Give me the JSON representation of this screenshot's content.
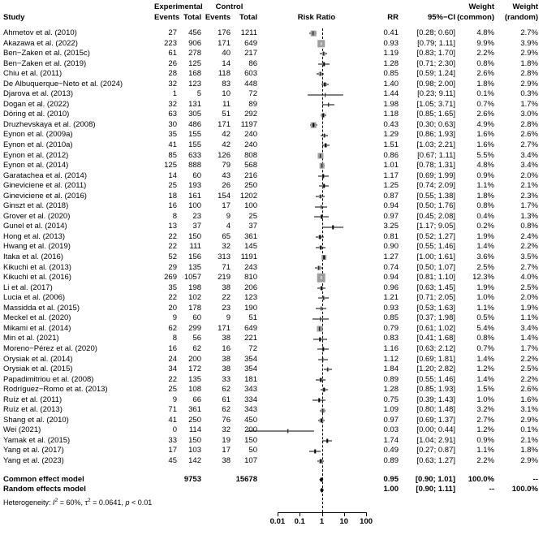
{
  "chart_data": {
    "type": "forest",
    "scale": "log10",
    "ref_line": 1,
    "colors": {
      "square_fill": "#9e9e9e",
      "line": "#000000",
      "background": "#ffffff"
    },
    "header": {
      "study": "Study",
      "experimental": "Experimental",
      "control": "Control",
      "events": "Events",
      "total": "Total",
      "risk_ratio": "Risk Ratio",
      "rr": "RR",
      "ci": "95%−CI",
      "weight": "Weight",
      "weight_common": "(common)",
      "weight_random": "(random)"
    },
    "axis": {
      "ticks": [
        0.01,
        0.1,
        1,
        10,
        100
      ]
    },
    "studies": [
      {
        "name": "Ahmetov et al. (2010)",
        "exp_events": 27,
        "exp_total": 456,
        "ctrl_events": 176,
        "ctrl_total": 1211,
        "rr": 0.41,
        "ci_lower": 0.28,
        "ci_upper": 0.6,
        "weight_common": "4.8%",
        "weight_random": "2.7%"
      },
      {
        "name": "Akazawa et al. (2022)",
        "exp_events": 223,
        "exp_total": 906,
        "ctrl_events": 171,
        "ctrl_total": 649,
        "rr": 0.93,
        "ci_lower": 0.79,
        "ci_upper": 1.11,
        "weight_common": "9.9%",
        "weight_random": "3.9%"
      },
      {
        "name": "Ben−Zaken et al. (2015c)",
        "exp_events": 61,
        "exp_total": 278,
        "ctrl_events": 40,
        "ctrl_total": 217,
        "rr": 1.19,
        "ci_lower": 0.83,
        "ci_upper": 1.7,
        "weight_common": "2.2%",
        "weight_random": "2.9%"
      },
      {
        "name": "Ben−Zaken et al. (2019)",
        "exp_events": 26,
        "exp_total": 125,
        "ctrl_events": 14,
        "ctrl_total": 86,
        "rr": 1.28,
        "ci_lower": 0.71,
        "ci_upper": 2.3,
        "weight_common": "0.8%",
        "weight_random": "1.8%"
      },
      {
        "name": "Chiu et al. (2011)",
        "exp_events": 28,
        "exp_total": 168,
        "ctrl_events": 118,
        "ctrl_total": 603,
        "rr": 0.85,
        "ci_lower": 0.59,
        "ci_upper": 1.24,
        "weight_common": "2.6%",
        "weight_random": "2.8%"
      },
      {
        "name": "De Albuquerque−Neto et al. (2024)",
        "exp_events": 32,
        "exp_total": 123,
        "ctrl_events": 83,
        "ctrl_total": 448,
        "rr": 1.4,
        "ci_lower": 0.98,
        "ci_upper": 2.0,
        "weight_common": "1.8%",
        "weight_random": "2.9%"
      },
      {
        "name": "Djarova et al. (2013)",
        "exp_events": 1,
        "exp_total": 5,
        "ctrl_events": 10,
        "ctrl_total": 72,
        "rr": 1.44,
        "ci_lower": 0.23,
        "ci_upper": 9.11,
        "weight_common": "0.1%",
        "weight_random": "0.3%"
      },
      {
        "name": "Dogan et al. (2022)",
        "exp_events": 32,
        "exp_total": 131,
        "ctrl_events": 11,
        "ctrl_total": 89,
        "rr": 1.98,
        "ci_lower": 1.05,
        "ci_upper": 3.71,
        "weight_common": "0.7%",
        "weight_random": "1.7%"
      },
      {
        "name": "Döring et al. (2010)",
        "exp_events": 63,
        "exp_total": 305,
        "ctrl_events": 51,
        "ctrl_total": 292,
        "rr": 1.18,
        "ci_lower": 0.85,
        "ci_upper": 1.65,
        "weight_common": "2.6%",
        "weight_random": "3.0%"
      },
      {
        "name": "Druzhevskaya et al. (2008)",
        "exp_events": 30,
        "exp_total": 486,
        "ctrl_events": 171,
        "ctrl_total": 1197,
        "rr": 0.43,
        "ci_lower": 0.3,
        "ci_upper": 0.63,
        "weight_common": "4.9%",
        "weight_random": "2.8%"
      },
      {
        "name": "Eynon et al. (2009a)",
        "exp_events": 35,
        "exp_total": 155,
        "ctrl_events": 42,
        "ctrl_total": 240,
        "rr": 1.29,
        "ci_lower": 0.86,
        "ci_upper": 1.93,
        "weight_common": "1.6%",
        "weight_random": "2.6%"
      },
      {
        "name": "Eynon et al. (2010a)",
        "exp_events": 41,
        "exp_total": 155,
        "ctrl_events": 42,
        "ctrl_total": 240,
        "rr": 1.51,
        "ci_lower": 1.03,
        "ci_upper": 2.21,
        "weight_common": "1.6%",
        "weight_random": "2.7%"
      },
      {
        "name": "Eynon et al. (2012)",
        "exp_events": 85,
        "exp_total": 633,
        "ctrl_events": 126,
        "ctrl_total": 808,
        "rr": 0.86,
        "ci_lower": 0.67,
        "ci_upper": 1.11,
        "weight_common": "5.5%",
        "weight_random": "3.4%"
      },
      {
        "name": "Eynon et al. (2014)",
        "exp_events": 125,
        "exp_total": 888,
        "ctrl_events": 79,
        "ctrl_total": 568,
        "rr": 1.01,
        "ci_lower": 0.78,
        "ci_upper": 1.31,
        "weight_common": "4.8%",
        "weight_random": "3.4%"
      },
      {
        "name": "Garatachea et al. (2014)",
        "exp_events": 14,
        "exp_total": 60,
        "ctrl_events": 43,
        "ctrl_total": 216,
        "rr": 1.17,
        "ci_lower": 0.69,
        "ci_upper": 1.99,
        "weight_common": "0.9%",
        "weight_random": "2.0%"
      },
      {
        "name": "Gineviciene et al. (2011)",
        "exp_events": 25,
        "exp_total": 193,
        "ctrl_events": 26,
        "ctrl_total": 250,
        "rr": 1.25,
        "ci_lower": 0.74,
        "ci_upper": 2.09,
        "weight_common": "1.1%",
        "weight_random": "2.1%"
      },
      {
        "name": "Gineviciene et al. (2016)",
        "exp_events": 18,
        "exp_total": 161,
        "ctrl_events": 154,
        "ctrl_total": 1202,
        "rr": 0.87,
        "ci_lower": 0.55,
        "ci_upper": 1.38,
        "weight_common": "1.8%",
        "weight_random": "2.3%"
      },
      {
        "name": "Ginszt et al. (2018)",
        "exp_events": 16,
        "exp_total": 100,
        "ctrl_events": 17,
        "ctrl_total": 100,
        "rr": 0.94,
        "ci_lower": 0.5,
        "ci_upper": 1.76,
        "weight_common": "0.8%",
        "weight_random": "1.7%"
      },
      {
        "name": "Grover et al. (2020)",
        "exp_events": 8,
        "exp_total": 23,
        "ctrl_events": 9,
        "ctrl_total": 25,
        "rr": 0.97,
        "ci_lower": 0.45,
        "ci_upper": 2.08,
        "weight_common": "0.4%",
        "weight_random": "1.3%"
      },
      {
        "name": "Gunel et al. (2014)",
        "exp_events": 13,
        "exp_total": 37,
        "ctrl_events": 4,
        "ctrl_total": 37,
        "rr": 3.25,
        "ci_lower": 1.17,
        "ci_upper": 9.05,
        "weight_common": "0.2%",
        "weight_random": "0.8%"
      },
      {
        "name": "Hong et al. (2013)",
        "exp_events": 22,
        "exp_total": 150,
        "ctrl_events": 65,
        "ctrl_total": 361,
        "rr": 0.81,
        "ci_lower": 0.52,
        "ci_upper": 1.27,
        "weight_common": "1.9%",
        "weight_random": "2.4%"
      },
      {
        "name": "Hwang et al. (2019)",
        "exp_events": 22,
        "exp_total": 111,
        "ctrl_events": 32,
        "ctrl_total": 145,
        "rr": 0.9,
        "ci_lower": 0.55,
        "ci_upper": 1.46,
        "weight_common": "1.4%",
        "weight_random": "2.2%"
      },
      {
        "name": "Itaka et al. (2016)",
        "exp_events": 52,
        "exp_total": 156,
        "ctrl_events": 313,
        "ctrl_total": 1191,
        "rr": 1.27,
        "ci_lower": 1.0,
        "ci_upper": 1.61,
        "weight_common": "3.6%",
        "weight_random": "3.5%"
      },
      {
        "name": "Kikuchi et al. (2013)",
        "exp_events": 29,
        "exp_total": 135,
        "ctrl_events": 71,
        "ctrl_total": 243,
        "rr": 0.74,
        "ci_lower": 0.5,
        "ci_upper": 1.07,
        "weight_common": "2.5%",
        "weight_random": "2.7%"
      },
      {
        "name": "Kikuchi et al. (2016)",
        "exp_events": 269,
        "exp_total": 1057,
        "ctrl_events": 219,
        "ctrl_total": 810,
        "rr": 0.94,
        "ci_lower": 0.81,
        "ci_upper": 1.1,
        "weight_common": "12.3%",
        "weight_random": "4.0%"
      },
      {
        "name": "Li et al. (2017)",
        "exp_events": 35,
        "exp_total": 198,
        "ctrl_events": 38,
        "ctrl_total": 206,
        "rr": 0.96,
        "ci_lower": 0.63,
        "ci_upper": 1.45,
        "weight_common": "1.9%",
        "weight_random": "2.5%"
      },
      {
        "name": "Lucia et al. (2006)",
        "exp_events": 22,
        "exp_total": 102,
        "ctrl_events": 22,
        "ctrl_total": 123,
        "rr": 1.21,
        "ci_lower": 0.71,
        "ci_upper": 2.05,
        "weight_common": "1.0%",
        "weight_random": "2.0%"
      },
      {
        "name": "Massidda et al. (2015)",
        "exp_events": 20,
        "exp_total": 178,
        "ctrl_events": 23,
        "ctrl_total": 190,
        "rr": 0.93,
        "ci_lower": 0.53,
        "ci_upper": 1.63,
        "weight_common": "1.1%",
        "weight_random": "1.9%"
      },
      {
        "name": "Meckel et al. (2020)",
        "exp_events": 9,
        "exp_total": 60,
        "ctrl_events": 9,
        "ctrl_total": 51,
        "rr": 0.85,
        "ci_lower": 0.37,
        "ci_upper": 1.98,
        "weight_common": "0.5%",
        "weight_random": "1.1%"
      },
      {
        "name": "Mikami et al. (2014)",
        "exp_events": 62,
        "exp_total": 299,
        "ctrl_events": 171,
        "ctrl_total": 649,
        "rr": 0.79,
        "ci_lower": 0.61,
        "ci_upper": 1.02,
        "weight_common": "5.4%",
        "weight_random": "3.4%"
      },
      {
        "name": "Min et al. (2021)",
        "exp_events": 8,
        "exp_total": 56,
        "ctrl_events": 38,
        "ctrl_total": 221,
        "rr": 0.83,
        "ci_lower": 0.41,
        "ci_upper": 1.68,
        "weight_common": "0.8%",
        "weight_random": "1.4%"
      },
      {
        "name": "Moreno−Pérez et al. (2020)",
        "exp_events": 16,
        "exp_total": 62,
        "ctrl_events": 16,
        "ctrl_total": 72,
        "rr": 1.16,
        "ci_lower": 0.63,
        "ci_upper": 2.12,
        "weight_common": "0.7%",
        "weight_random": "1.7%"
      },
      {
        "name": "Orysiak et al. (2014)",
        "exp_events": 24,
        "exp_total": 200,
        "ctrl_events": 38,
        "ctrl_total": 354,
        "rr": 1.12,
        "ci_lower": 0.69,
        "ci_upper": 1.81,
        "weight_common": "1.4%",
        "weight_random": "2.2%"
      },
      {
        "name": "Orysiak et al. (2015)",
        "exp_events": 34,
        "exp_total": 172,
        "ctrl_events": 38,
        "ctrl_total": 354,
        "rr": 1.84,
        "ci_lower": 1.2,
        "ci_upper": 2.82,
        "weight_common": "1.2%",
        "weight_random": "2.5%"
      },
      {
        "name": "Papadimitriou et al. (2008)",
        "exp_events": 22,
        "exp_total": 135,
        "ctrl_events": 33,
        "ctrl_total": 181,
        "rr": 0.89,
        "ci_lower": 0.55,
        "ci_upper": 1.46,
        "weight_common": "1.4%",
        "weight_random": "2.2%"
      },
      {
        "name": "Rodríguez−Romo et at. (2013)",
        "exp_events": 25,
        "exp_total": 108,
        "ctrl_events": 62,
        "ctrl_total": 343,
        "rr": 1.28,
        "ci_lower": 0.85,
        "ci_upper": 1.93,
        "weight_common": "1.5%",
        "weight_random": "2.6%"
      },
      {
        "name": "Ruíz et al. (2011)",
        "exp_events": 9,
        "exp_total": 66,
        "ctrl_events": 61,
        "ctrl_total": 334,
        "rr": 0.75,
        "ci_lower": 0.39,
        "ci_upper": 1.43,
        "weight_common": "1.0%",
        "weight_random": "1.6%"
      },
      {
        "name": "Ruíz et al. (2013)",
        "exp_events": 71,
        "exp_total": 361,
        "ctrl_events": 62,
        "ctrl_total": 343,
        "rr": 1.09,
        "ci_lower": 0.8,
        "ci_upper": 1.48,
        "weight_common": "3.2%",
        "weight_random": "3.1%"
      },
      {
        "name": "Shang et al. (2010)",
        "exp_events": 41,
        "exp_total": 250,
        "ctrl_events": 76,
        "ctrl_total": 450,
        "rr": 0.97,
        "ci_lower": 0.69,
        "ci_upper": 1.37,
        "weight_common": "2.7%",
        "weight_random": "2.9%"
      },
      {
        "name": "Wei (2021)",
        "exp_events": 0,
        "exp_total": 114,
        "ctrl_events": 32,
        "ctrl_total": 200,
        "rr": 0.03,
        "ci_lower": 0.0,
        "ci_upper": 0.44,
        "weight_common": "1.2%",
        "weight_random": "0.1%"
      },
      {
        "name": "Yamak et al. (2015)",
        "exp_events": 33,
        "exp_total": 150,
        "ctrl_events": 19,
        "ctrl_total": 150,
        "rr": 1.74,
        "ci_lower": 1.04,
        "ci_upper": 2.91,
        "weight_common": "0.9%",
        "weight_random": "2.1%"
      },
      {
        "name": "Yang et al. (2017)",
        "exp_events": 17,
        "exp_total": 103,
        "ctrl_events": 17,
        "ctrl_total": 50,
        "rr": 0.49,
        "ci_lower": 0.27,
        "ci_upper": 0.87,
        "weight_common": "1.1%",
        "weight_random": "1.8%"
      },
      {
        "name": "Yang et al. (2023)",
        "exp_events": 45,
        "exp_total": 142,
        "ctrl_events": 38,
        "ctrl_total": 107,
        "rr": 0.89,
        "ci_lower": 0.63,
        "ci_upper": 1.27,
        "weight_common": "2.2%",
        "weight_random": "2.9%"
      }
    ],
    "summaries": [
      {
        "name": "Common effect model",
        "exp_total": 9753,
        "ctrl_total": 15678,
        "rr": 0.95,
        "ci_lower": 0.9,
        "ci_upper": 1.01,
        "weight_common": "100.0%",
        "weight_random": "--"
      },
      {
        "name": "Random effects model",
        "exp_total": "",
        "ctrl_total": "",
        "rr": 1.0,
        "ci_lower": 0.9,
        "ci_upper": 1.11,
        "weight_common": "--",
        "weight_random": "100.0%"
      }
    ],
    "heterogeneity": {
      "prefix": "Heterogeneity: ",
      "i": "I",
      "sup2": "2",
      "seg_a": " = 60%, τ",
      "seg_b": " = 0.0641, ",
      "p": "p",
      "seg_c": " < 0.01"
    }
  }
}
